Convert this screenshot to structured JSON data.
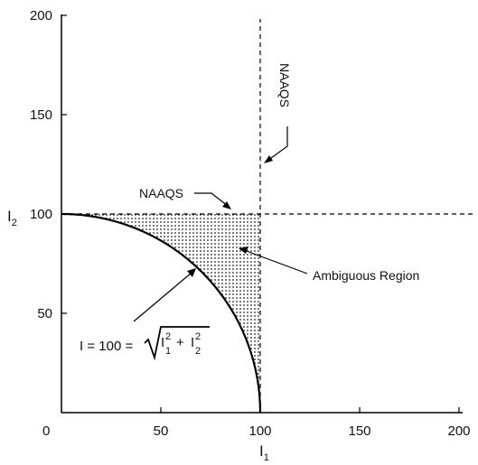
{
  "chart_data": {
    "type": "line",
    "xlabel": "I",
    "xlabel_sub": "1",
    "ylabel": "I",
    "ylabel_sub": "2",
    "xlim": [
      0,
      200
    ],
    "ylim": [
      0,
      200
    ],
    "x_ticks": [
      0,
      50,
      100,
      150,
      200
    ],
    "x_tick_labels": [
      "0",
      "50",
      "100",
      "150",
      "200"
    ],
    "y_ticks": [
      50,
      100,
      150,
      200
    ],
    "y_tick_labels": [
      "50",
      "100",
      "150",
      "200"
    ],
    "grid": false,
    "series": [
      {
        "style": "solid",
        "curve": "quarter-circle",
        "center": [
          0,
          0
        ],
        "radius": 100
      },
      {
        "style": "dashed",
        "x": [
          100,
          100
        ],
        "y": [
          0,
          200
        ]
      },
      {
        "style": "dashed",
        "x": [
          0,
          208
        ],
        "y": [
          100,
          100
        ]
      }
    ],
    "shaded_region": {
      "fill": "dotted",
      "bounds": "between circle radius 100 and lines I1=100, I2=100"
    },
    "annotations": {
      "naaqs_vertical": "NAAQS",
      "naaqs_horizontal": "NAAQS",
      "ambiguous": "Ambiguous Region",
      "formula_lhs": "I = 100 =",
      "formula_term": "I",
      "formula_sub1": "1",
      "formula_sub2": "2",
      "formula_sup": "2",
      "formula_plus": "+"
    }
  }
}
